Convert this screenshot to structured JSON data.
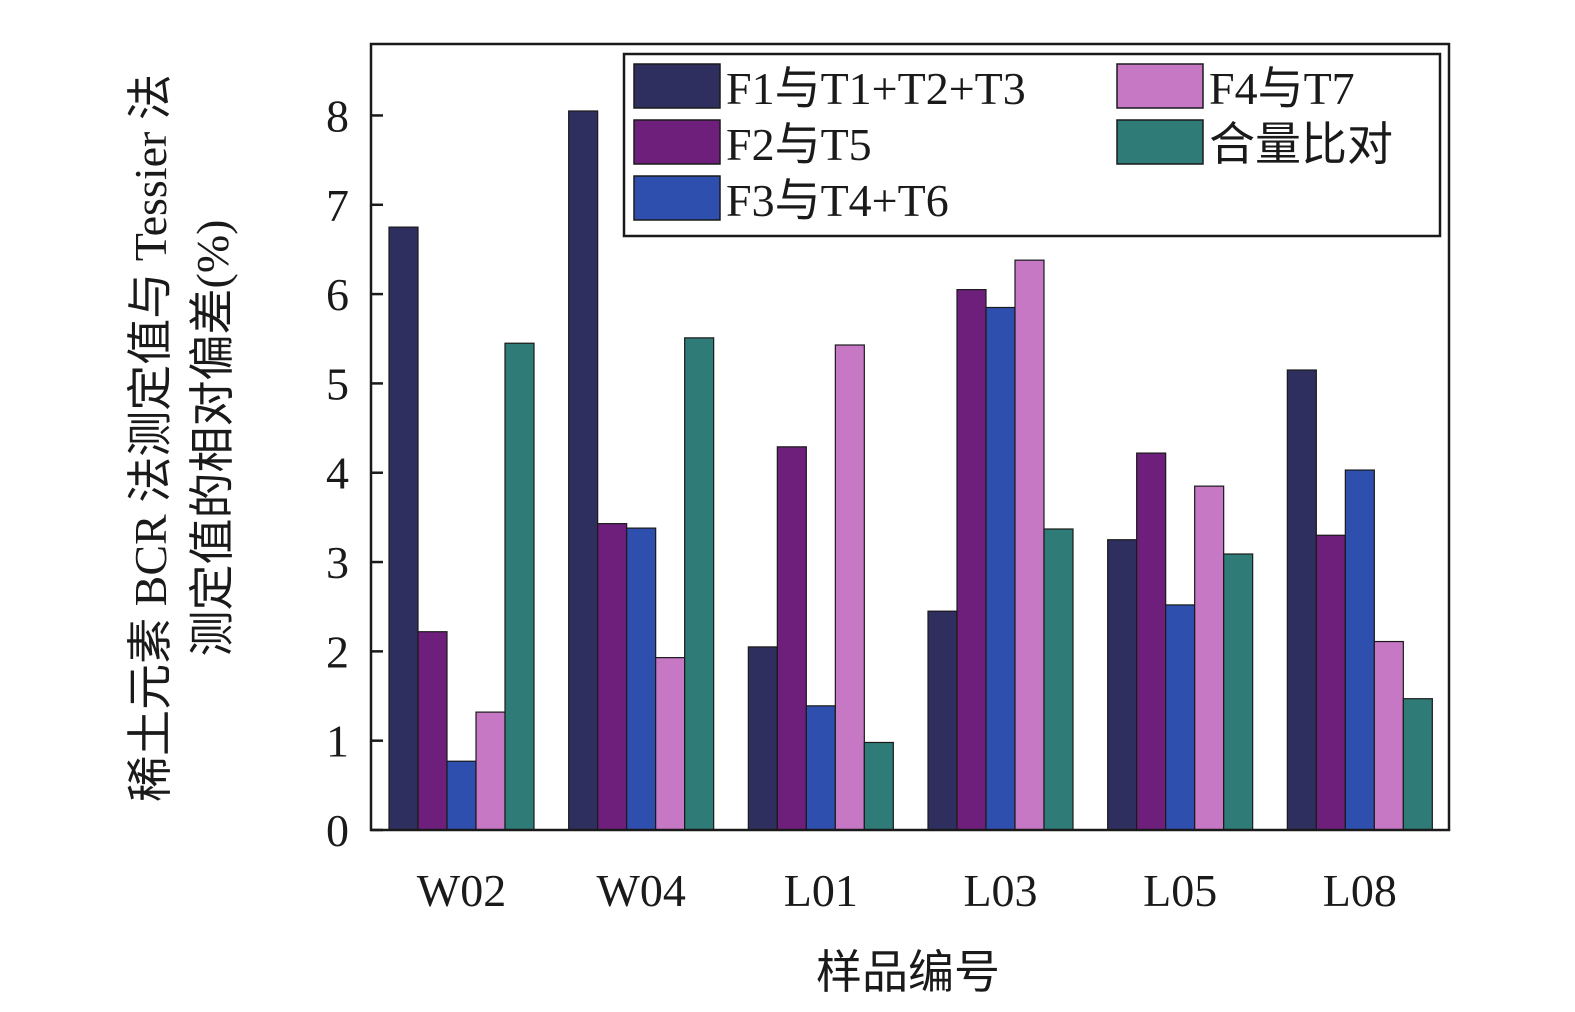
{
  "chart_data": {
    "type": "bar",
    "xlabel": "样品编号",
    "ylabel_lines": [
      "稀土元素 BCR 法测定值与 Tessier 法",
      "测定值的相对偏差(%)"
    ],
    "categories": [
      "W02",
      "W04",
      "L01",
      "L03",
      "L05",
      "L08"
    ],
    "ylim": [
      0,
      8.8
    ],
    "yticks": [
      "0",
      "1",
      "2",
      "3",
      "4",
      "5",
      "6",
      "7",
      "8"
    ],
    "grid": false,
    "legend_position": "top-right",
    "series": [
      {
        "name": "F1与T1+T2+T3",
        "color": "#2e2f5e",
        "values": [
          6.75,
          8.05,
          2.05,
          2.45,
          3.25,
          5.15
        ]
      },
      {
        "name": "F2与T5",
        "color": "#6e1f7c",
        "values": [
          2.22,
          3.43,
          4.29,
          6.05,
          4.22,
          3.3
        ]
      },
      {
        "name": "F3与T4+T6",
        "color": "#2f4fae",
        "values": [
          0.77,
          3.38,
          1.39,
          5.85,
          2.52,
          4.03
        ]
      },
      {
        "name": "F4与T7",
        "color": "#c678c4",
        "values": [
          1.32,
          1.93,
          5.43,
          6.38,
          3.85,
          2.11
        ]
      },
      {
        "name": "合量比对",
        "color": "#2f7b77",
        "values": [
          5.45,
          5.51,
          0.98,
          3.37,
          3.09,
          1.47
        ]
      }
    ]
  }
}
